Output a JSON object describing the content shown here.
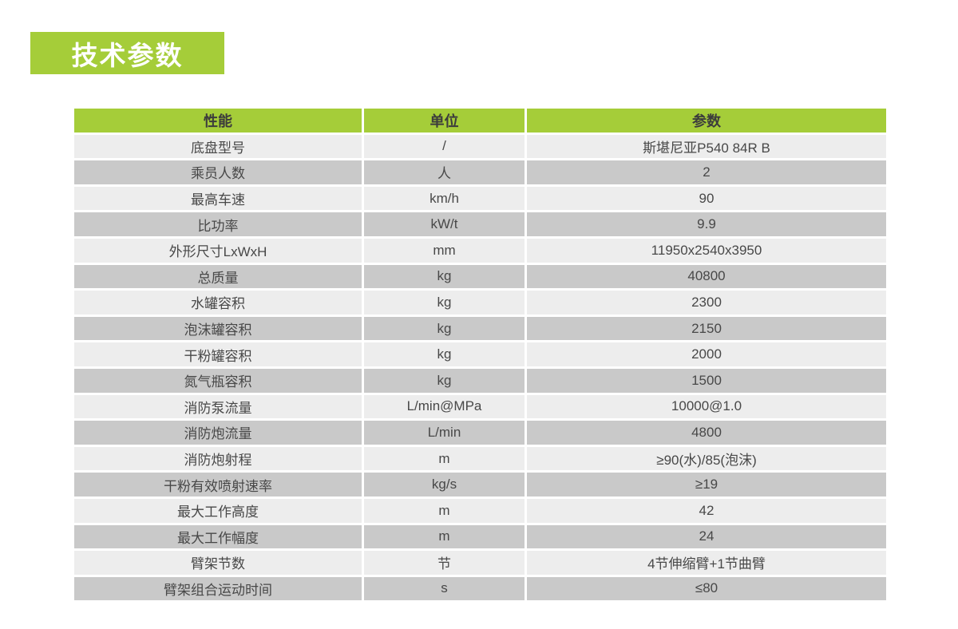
{
  "title": "技术参数",
  "colors": {
    "accent_green": "#a5cd39",
    "header_text": "#3c3c3c",
    "row_light": "#ededed",
    "row_dark": "#c9c9c9",
    "cell_text": "#484848",
    "title_text": "#ffffff"
  },
  "table": {
    "headers": [
      "性能",
      "单位",
      "参数"
    ],
    "rows": [
      [
        "底盘型号",
        "/",
        "斯堪尼亚P540 84R B"
      ],
      [
        "乘员人数",
        "人",
        "2"
      ],
      [
        "最高车速",
        "km/h",
        "90"
      ],
      [
        "比功率",
        "kW/t",
        "9.9"
      ],
      [
        "外形尺寸LxWxH",
        "mm",
        "11950x2540x3950"
      ],
      [
        "总质量",
        "kg",
        "40800"
      ],
      [
        "水罐容积",
        "kg",
        "2300"
      ],
      [
        "泡沫罐容积",
        "kg",
        "2150"
      ],
      [
        "干粉罐容积",
        "kg",
        "2000"
      ],
      [
        "氮气瓶容积",
        "kg",
        "1500"
      ],
      [
        "消防泵流量",
        "L/min@MPa",
        "10000@1.0"
      ],
      [
        "消防炮流量",
        "L/min",
        "4800"
      ],
      [
        "消防炮射程",
        "m",
        "≥90(水)/85(泡沫)"
      ],
      [
        "干粉有效喷射速率",
        "kg/s",
        "≥19"
      ],
      [
        "最大工作高度",
        "m",
        "42"
      ],
      [
        "最大工作幅度",
        "m",
        "24"
      ],
      [
        "臂架节数",
        "节",
        "4节伸缩臂+1节曲臂"
      ],
      [
        "臂架组合运动时间",
        "s",
        "≤80"
      ]
    ]
  }
}
